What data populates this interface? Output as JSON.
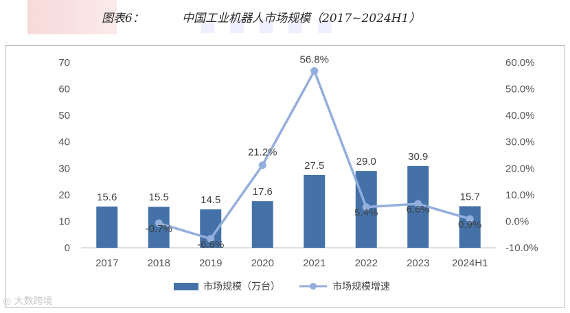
{
  "header": {
    "figure_label": "图表6：",
    "title": "中国工业机器人市场规模（2017~2024H1）"
  },
  "footer": {
    "watermark": "大数跨境"
  },
  "colors": {
    "bar": "#4472a8",
    "line": "#94aedd",
    "axis": "#bfbfbf",
    "text": "#404040"
  },
  "chart_data": {
    "type": "bar",
    "title": "中国工业机器人市场规模（2017~2024H1）",
    "categories": [
      "2017",
      "2018",
      "2019",
      "2020",
      "2021",
      "2022",
      "2023",
      "2024H1"
    ],
    "ylim": [
      0,
      70
    ],
    "y_ticks": [
      "0",
      "10",
      "20",
      "30",
      "40",
      "50",
      "60",
      "70"
    ],
    "y2lim": [
      -10,
      60
    ],
    "y2_ticks": [
      "-10.0%",
      "0.0%",
      "10.0%",
      "20.0%",
      "30.0%",
      "40.0%",
      "50.0%",
      "60.0%"
    ],
    "series": [
      {
        "name": "市场规模（万台）",
        "type": "bar",
        "values": [
          15.6,
          15.5,
          14.5,
          17.6,
          27.5,
          29.0,
          30.9,
          15.7
        ],
        "labels": [
          "15.6",
          "15.5",
          "14.5",
          "17.6",
          "27.5",
          "29.0",
          "30.9",
          "15.7"
        ]
      },
      {
        "name": "市场规模增速",
        "type": "line",
        "axis": "right",
        "values": [
          null,
          -0.7,
          -6.6,
          21.2,
          56.8,
          5.4,
          6.6,
          0.9
        ],
        "labels": [
          "",
          "-0.7%",
          "-6.6%",
          "21.2%",
          "56.8%",
          "5.4%",
          "6.6%",
          "0.9%"
        ]
      }
    ],
    "legend": {
      "position": "bottom"
    }
  }
}
